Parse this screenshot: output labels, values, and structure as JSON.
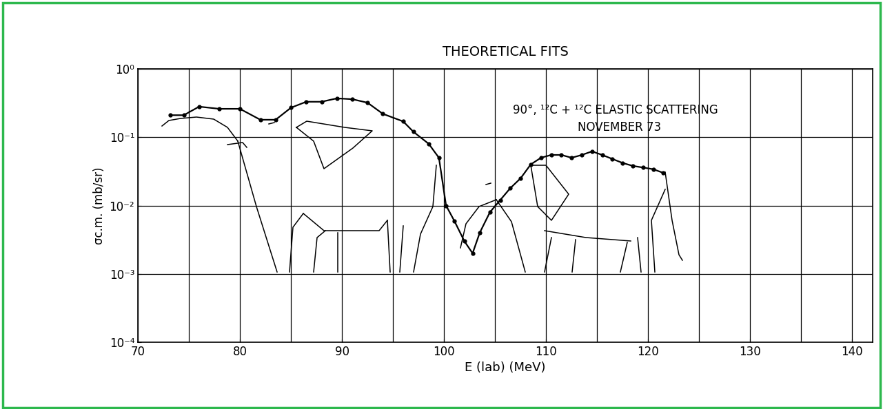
{
  "chart_data": {
    "type": "line",
    "title": "THEORETICAL FITS",
    "annotations": [
      "90°, ¹²C + ¹²C ELASTIC SCATTERING",
      "NOVEMBER 73"
    ],
    "x_label": "E (lab) (MeV)",
    "y_label": "σc.m. (mb/sr)",
    "log": "y",
    "grid": true,
    "marker": "o",
    "line_style": "solid",
    "color": "#000000",
    "x": [
      73.2,
      74.5,
      76,
      78,
      80,
      82,
      83.5,
      85,
      86.5,
      88,
      89.5,
      91,
      92.5,
      94,
      96,
      97,
      98.5,
      99.5,
      100.2,
      101,
      102,
      102.8,
      103.5,
      104.5,
      105.5,
      106.5,
      107.5,
      108.5,
      109.5,
      110.5,
      111.5,
      112.5,
      113.5,
      114.5,
      115.5,
      116.5,
      117.5,
      118.5,
      119.5,
      120.5,
      121.5
    ],
    "values": [
      0.21,
      0.21,
      0.28,
      0.26,
      0.26,
      0.18,
      0.18,
      0.27,
      0.33,
      0.33,
      0.37,
      0.36,
      0.32,
      0.22,
      0.17,
      0.12,
      0.08,
      0.05,
      0.01,
      0.006,
      0.003,
      0.002,
      0.004,
      0.008,
      0.012,
      0.018,
      0.025,
      0.04,
      0.05,
      0.055,
      0.055,
      0.05,
      0.055,
      0.062,
      0.055,
      0.048,
      0.042,
      0.038,
      0.036,
      0.034,
      0.03
    ],
    "xlim": [
      70,
      142
    ],
    "xticks": [
      70,
      80,
      90,
      100,
      110,
      120,
      130,
      140
    ],
    "ylim": [
      0.0001,
      1
    ],
    "yticks": [
      {
        "value": 0.0001,
        "label": "10⁻⁴"
      },
      {
        "value": 0.001,
        "label": "10⁻³"
      },
      {
        "value": 0.01,
        "label": "10⁻²"
      },
      {
        "value": 0.1,
        "label": "10⁻¹"
      },
      {
        "value": 1,
        "label": "10⁰"
      }
    ]
  }
}
